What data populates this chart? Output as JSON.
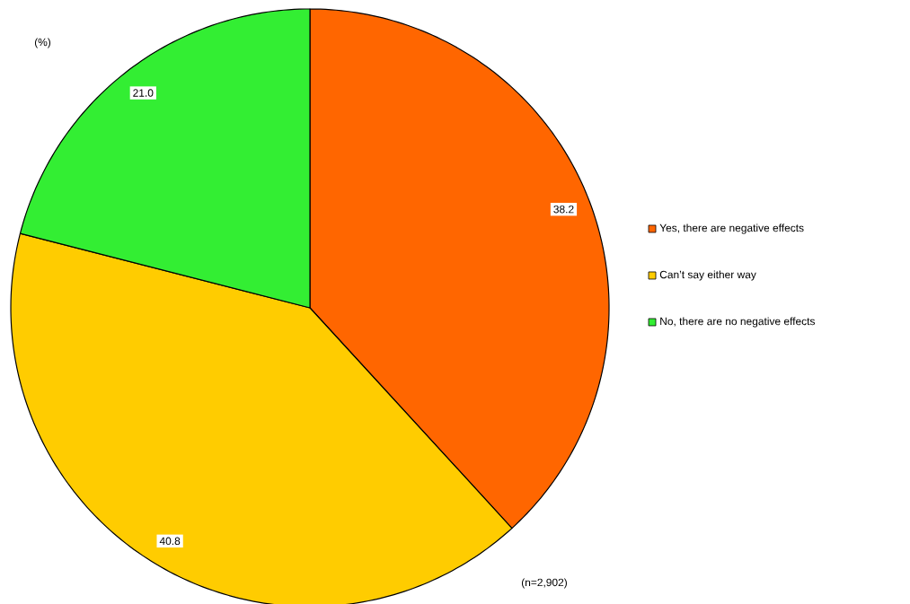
{
  "chart_data": {
    "type": "pie",
    "categories": [
      "Yes, there are negative effects",
      "Can’t say either way",
      "No, there are no negative effects"
    ],
    "values": [
      38.2,
      40.8,
      21.0
    ],
    "colors": [
      "#ff6600",
      "#ffcc00",
      "#33ee33"
    ],
    "value_labels": [
      "38.2",
      "40.8",
      "21.0"
    ],
    "legend": "right",
    "annotations": [
      "(%)",
      "(n=2,902)"
    ]
  }
}
